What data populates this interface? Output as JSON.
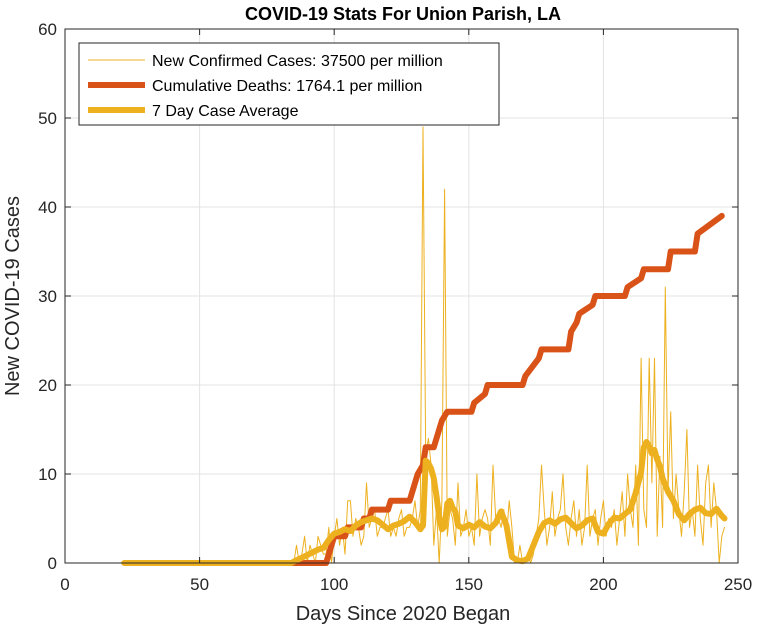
{
  "chart_data": {
    "type": "line",
    "title": "COVID-19 Stats For Union Parish, LA",
    "xlabel": "Days Since 2020 Began",
    "ylabel": "New COVID-19 Cases",
    "xlim": [
      0,
      250
    ],
    "ylim": [
      0,
      60
    ],
    "xticks": [
      0,
      50,
      100,
      150,
      200,
      250
    ],
    "yticks": [
      0,
      10,
      20,
      30,
      40,
      50,
      60
    ],
    "grid": true,
    "legend_position": "top-left",
    "series": [
      {
        "name": "New Confirmed Cases: 37500 per million",
        "color": "#EDB120",
        "style": "thin",
        "x": [
          22,
          30,
          40,
          50,
          60,
          70,
          80,
          84,
          85,
          86,
          87,
          88,
          89,
          90,
          91,
          92,
          93,
          94,
          95,
          96,
          97,
          98,
          99,
          100,
          101,
          102,
          103,
          104,
          105,
          106,
          107,
          108,
          109,
          110,
          111,
          112,
          113,
          114,
          115,
          116,
          117,
          118,
          119,
          120,
          121,
          122,
          123,
          124,
          125,
          126,
          127,
          128,
          129,
          130,
          131,
          132,
          133,
          134,
          135,
          136,
          137,
          138,
          139,
          140,
          141,
          142,
          143,
          144,
          145,
          146,
          147,
          148,
          149,
          150,
          151,
          152,
          153,
          154,
          155,
          156,
          157,
          158,
          159,
          160,
          161,
          162,
          163,
          164,
          165,
          166,
          167,
          168,
          169,
          170,
          171,
          172,
          173,
          174,
          175,
          176,
          177,
          178,
          179,
          180,
          181,
          182,
          183,
          184,
          185,
          186,
          187,
          188,
          189,
          190,
          191,
          192,
          193,
          194,
          195,
          196,
          197,
          198,
          199,
          200,
          201,
          202,
          203,
          204,
          205,
          206,
          207,
          208,
          209,
          210,
          211,
          212,
          213,
          214,
          215,
          216,
          217,
          218,
          219,
          220,
          221,
          222,
          223,
          224,
          225,
          226,
          227,
          228,
          229,
          230,
          231,
          232,
          233,
          234,
          235,
          236,
          237,
          238,
          239,
          240,
          241,
          242,
          243,
          244,
          245
        ],
        "y": [
          0,
          0,
          0,
          0,
          0,
          0,
          0,
          0,
          0,
          2,
          0,
          1,
          3,
          0,
          2,
          1,
          0,
          3,
          2,
          1,
          1,
          4,
          0,
          3,
          5,
          2,
          4,
          1,
          7,
          7,
          3,
          5,
          4,
          2,
          3,
          9,
          4,
          5,
          6,
          3,
          4,
          4,
          5,
          6,
          3,
          4,
          3,
          5,
          6,
          3,
          4,
          4,
          5,
          7,
          4,
          6,
          49,
          12,
          14,
          11,
          2,
          6,
          0,
          7,
          42,
          3,
          6,
          5,
          2,
          9,
          3,
          4,
          6,
          3,
          4,
          2,
          10,
          3,
          5,
          6,
          5,
          2,
          11,
          5,
          5,
          4,
          6,
          3,
          7,
          4,
          0,
          0,
          2,
          0,
          0,
          1,
          0,
          1,
          3,
          5,
          11,
          6,
          2,
          4,
          8,
          3,
          5,
          6,
          10,
          4,
          2,
          5,
          7,
          3,
          6,
          2,
          4,
          11,
          3,
          5,
          6,
          2,
          5,
          7,
          3,
          5,
          4,
          6,
          2,
          5,
          8,
          3,
          10,
          6,
          4,
          11,
          2,
          23,
          6,
          4,
          23,
          9,
          23,
          3,
          12,
          4,
          31,
          8,
          17,
          5,
          10,
          6,
          3,
          8,
          15,
          4,
          6,
          3,
          11,
          5,
          2,
          9,
          11,
          4,
          9,
          6,
          0,
          3,
          4
        ],
        "y_note": ""
      },
      {
        "name": "Cumulative Deaths: 1764.1 per million",
        "color": "#D95319",
        "style": "thick",
        "x": [
          84,
          97,
          98,
          99,
          100,
          101,
          104,
          105,
          110,
          111,
          113,
          114,
          120,
          121,
          124,
          125,
          128,
          129,
          130,
          131,
          133,
          134,
          137,
          138,
          139,
          140,
          142,
          143,
          151,
          152,
          156,
          157,
          170,
          171,
          176,
          177,
          187,
          188,
          190,
          191,
          196,
          197,
          208,
          209,
          214,
          215,
          224,
          225,
          234,
          235,
          244
        ],
        "y": [
          0,
          0,
          1,
          2,
          3,
          3,
          3,
          4,
          4,
          5,
          5,
          6,
          6,
          7,
          7,
          7,
          7,
          8,
          9,
          10,
          11,
          13,
          13,
          14,
          15,
          16,
          17,
          17,
          17,
          18,
          19,
          20,
          20,
          21,
          23,
          24,
          24,
          26,
          27,
          28,
          29,
          30,
          30,
          31,
          32,
          33,
          33,
          35,
          35,
          37,
          39
        ]
      },
      {
        "name": "7 Day Case Average",
        "color": "#EDB120",
        "style": "medium",
        "x": [
          22,
          30,
          40,
          50,
          60,
          70,
          80,
          84,
          86,
          88,
          90,
          92,
          94,
          96,
          98,
          100,
          102,
          104,
          106,
          108,
          110,
          112,
          114,
          116,
          118,
          120,
          122,
          124,
          126,
          128,
          130,
          132,
          133,
          134,
          135,
          136,
          137,
          138,
          139,
          140,
          141,
          142,
          143,
          144,
          145,
          146,
          148,
          150,
          152,
          154,
          156,
          158,
          160,
          162,
          164,
          166,
          168,
          170,
          172,
          174,
          176,
          178,
          180,
          182,
          184,
          186,
          188,
          190,
          192,
          194,
          196,
          198,
          200,
          202,
          204,
          206,
          208,
          210,
          212,
          214,
          215,
          216,
          217,
          218,
          219,
          220,
          221,
          222,
          224,
          226,
          228,
          230,
          232,
          234,
          236,
          238,
          240,
          242,
          244,
          245
        ],
        "y": [
          0,
          0,
          0,
          0,
          0,
          0,
          0,
          0,
          0.3,
          0.6,
          0.9,
          1.2,
          1.5,
          1.7,
          2.6,
          3.3,
          3.5,
          3.8,
          3.6,
          4.2,
          4.6,
          4.8,
          5,
          4.8,
          4.3,
          3.8,
          4.2,
          4.4,
          4.7,
          5.2,
          4.6,
          3.8,
          4.2,
          11.5,
          11.2,
          10.6,
          9.5,
          7.5,
          5.2,
          3.8,
          4.1,
          6.7,
          7.0,
          6.2,
          5.8,
          4.2,
          3.9,
          4.3,
          4.0,
          4.6,
          4.1,
          3.9,
          4.5,
          5.8,
          4.2,
          0.7,
          0.3,
          0.2,
          0.5,
          2.0,
          3.5,
          4.5,
          4.8,
          4.4,
          4.9,
          5.1,
          4.5,
          3.9,
          4.2,
          4.8,
          5.0,
          3.5,
          3.3,
          4.4,
          5.1,
          5.0,
          5.5,
          6.0,
          7.9,
          10.2,
          13.0,
          13.6,
          13.1,
          12.3,
          12.7,
          11.6,
          10.9,
          9.5,
          8.0,
          7.0,
          5.5,
          4.8,
          5.5,
          6.0,
          6.2,
          5.6,
          5.5,
          6.1,
          5.3,
          5.0
        ]
      }
    ]
  }
}
